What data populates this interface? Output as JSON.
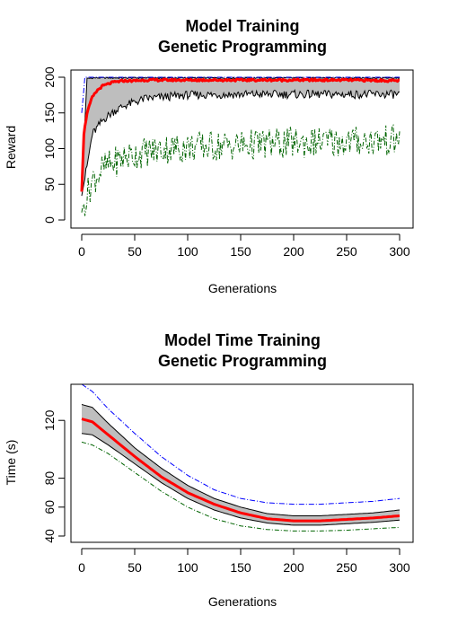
{
  "colors": {
    "mean": "#ff0000",
    "band": "#bebebe",
    "band_edge": "#000000",
    "max": "#0000ff",
    "min": "#006400",
    "frame": "#000000"
  },
  "chart_data": [
    {
      "type": "area",
      "title": [
        "Model Training",
        "Genetic Programming"
      ],
      "xlabel": "Generations",
      "ylabel": "Reward",
      "xlim": [
        0,
        300
      ],
      "ylim": [
        0,
        200
      ],
      "xticks": [
        0,
        50,
        100,
        150,
        200,
        250,
        300
      ],
      "yticks": [
        0,
        50,
        100,
        150,
        200
      ],
      "grid": false,
      "legend": "none",
      "series": [
        {
          "role": "mean",
          "x": [
            0,
            2,
            5,
            10,
            15,
            20,
            30,
            40,
            50,
            60,
            80,
            100,
            150,
            200,
            250,
            300
          ],
          "values": [
            40,
            120,
            150,
            172,
            182,
            188,
            193,
            195,
            195,
            196,
            196,
            196,
            196,
            196,
            196,
            195
          ]
        },
        {
          "role": "band-upper",
          "x": [
            0,
            5,
            10,
            20,
            40,
            60,
            100,
            150,
            200,
            250,
            300
          ],
          "values": [
            45,
            198,
            199,
            199,
            199,
            199,
            199,
            199,
            199,
            199,
            199
          ]
        },
        {
          "role": "band-lower",
          "x": [
            0,
            5,
            10,
            20,
            30,
            40,
            60,
            100,
            150,
            200,
            250,
            300
          ],
          "values": [
            35,
            75,
            120,
            140,
            152,
            160,
            170,
            175,
            176,
            176,
            176,
            176
          ]
        },
        {
          "role": "max",
          "x": [
            0,
            3,
            300
          ],
          "values": [
            150,
            200,
            200
          ]
        },
        {
          "role": "min",
          "x": [
            0,
            5,
            10,
            20,
            30,
            40,
            60,
            80,
            100,
            150,
            200,
            250,
            300
          ],
          "values": [
            13,
            35,
            55,
            72,
            80,
            88,
            95,
            100,
            102,
            105,
            108,
            110,
            112
          ]
        }
      ]
    },
    {
      "type": "area",
      "title": [
        "Model Time Training",
        "Genetic Programming"
      ],
      "xlabel": "Generations",
      "ylabel": "Time (s)",
      "xlim": [
        0,
        300
      ],
      "ylim": [
        38,
        140
      ],
      "xticks": [
        0,
        50,
        100,
        150,
        200,
        250,
        300
      ],
      "yticks": [
        40,
        60,
        80,
        120
      ],
      "grid": false,
      "legend": "none",
      "series": [
        {
          "role": "mean",
          "x": [
            0,
            10,
            25,
            50,
            75,
            100,
            125,
            150,
            175,
            200,
            225,
            250,
            275,
            300
          ],
          "values": [
            121,
            119,
            110,
            95,
            81,
            70,
            62,
            56,
            52,
            50.5,
            50.5,
            51.5,
            52.5,
            54
          ]
        },
        {
          "role": "band-upper",
          "x": [
            0,
            10,
            25,
            50,
            75,
            100,
            125,
            150,
            175,
            200,
            225,
            250,
            275,
            300
          ],
          "values": [
            131,
            129,
            118,
            101,
            87,
            75,
            66,
            60,
            55.5,
            54,
            54,
            55,
            56,
            58
          ]
        },
        {
          "role": "band-lower",
          "x": [
            0,
            10,
            25,
            50,
            75,
            100,
            125,
            150,
            175,
            200,
            225,
            250,
            275,
            300
          ],
          "values": [
            111,
            110,
            103,
            90,
            77,
            66,
            58,
            52.5,
            49,
            47.5,
            47.5,
            48.5,
            49.5,
            51
          ]
        },
        {
          "role": "max",
          "x": [
            0,
            10,
            25,
            50,
            75,
            100,
            125,
            150,
            175,
            200,
            225,
            250,
            275,
            300
          ],
          "values": [
            145,
            140,
            128,
            111,
            95,
            82,
            72,
            66,
            63,
            62,
            62,
            63,
            64,
            66
          ]
        },
        {
          "role": "min",
          "x": [
            0,
            10,
            25,
            50,
            75,
            100,
            125,
            150,
            175,
            200,
            225,
            250,
            275,
            300
          ],
          "values": [
            105,
            103,
            97,
            84,
            71,
            60,
            52,
            47,
            44.5,
            43.5,
            43.5,
            44,
            45,
            46
          ]
        }
      ]
    }
  ]
}
